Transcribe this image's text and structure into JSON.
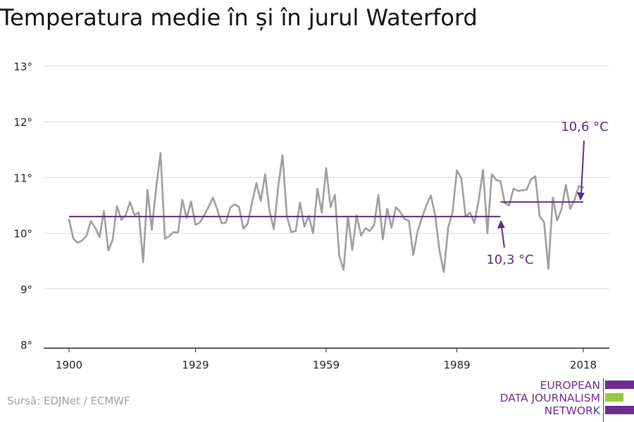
{
  "title": "Temperatura medie în și în jurul Waterford",
  "source": "Sursă: EDJNet / ECMWF",
  "logo": {
    "line1": "EUROPEAN",
    "line2": "DATA JOURNALISM",
    "line3": "NETWORK"
  },
  "colors": {
    "series": "#9e9e9e",
    "accent": "#5b2a86",
    "grid": "#d9d9d9",
    "logo_purple": "#6a2d90",
    "logo_green": "#96c93d"
  },
  "chart_data": {
    "type": "line",
    "title": "Temperatura medie în și în jurul Waterford",
    "xlabel": "",
    "ylabel": "",
    "xlim": [
      1900,
      2018
    ],
    "ylim": [
      8,
      13
    ],
    "x_ticks": [
      1900,
      1929,
      1959,
      1989,
      2018
    ],
    "x_tick_labels": [
      "1900",
      "1929",
      "1959",
      "1989",
      "2018"
    ],
    "y_ticks": [
      8,
      9,
      10,
      11,
      12,
      13
    ],
    "y_tick_labels": [
      "8°",
      "9°",
      "10°",
      "11°",
      "12°",
      "13°"
    ],
    "grid": true,
    "series": [
      {
        "x": [
          1900,
          1901,
          1902,
          1903,
          1904,
          1905,
          1906,
          1907,
          1908,
          1909,
          1910,
          1911,
          1912,
          1913,
          1914,
          1915,
          1916,
          1917,
          1918,
          1919,
          1920,
          1921,
          1922,
          1923,
          1924,
          1925,
          1926,
          1927,
          1928,
          1929,
          1930,
          1931,
          1932,
          1933,
          1934,
          1935,
          1936,
          1937,
          1938,
          1939,
          1940,
          1941,
          1942,
          1943,
          1944,
          1945,
          1946,
          1947,
          1948,
          1949,
          1950,
          1951,
          1952,
          1953,
          1954,
          1955,
          1956,
          1957,
          1958,
          1959,
          1960,
          1961,
          1962,
          1963,
          1964,
          1965,
          1966,
          1967,
          1968,
          1969,
          1970,
          1971,
          1972,
          1973,
          1974,
          1975,
          1976,
          1977,
          1978,
          1979,
          1980,
          1981,
          1982,
          1983,
          1984,
          1985,
          1986,
          1987,
          1988,
          1989,
          1990,
          1991,
          1992,
          1993,
          1994,
          1995,
          1996,
          1997,
          1998,
          1999,
          2000,
          2001,
          2002,
          2003,
          2004,
          2005,
          2006,
          2007,
          2008,
          2009,
          2010,
          2011,
          2012,
          2013,
          2014,
          2015,
          2016,
          2017,
          2018
        ],
        "values": [
          10.24,
          9.9,
          9.83,
          9.87,
          9.95,
          10.22,
          10.1,
          9.93,
          10.4,
          9.69,
          9.88,
          10.49,
          10.24,
          10.33,
          10.56,
          10.33,
          10.37,
          9.48,
          10.78,
          10.06,
          10.82,
          11.44,
          9.9,
          9.95,
          10.02,
          10.01,
          10.6,
          10.27,
          10.57,
          10.15,
          10.19,
          10.32,
          10.47,
          10.64,
          10.43,
          10.18,
          10.19,
          10.46,
          10.52,
          10.47,
          10.08,
          10.17,
          10.55,
          10.9,
          10.58,
          11.06,
          10.4,
          10.07,
          10.83,
          11.4,
          10.3,
          10.02,
          10.04,
          10.55,
          10.12,
          10.31,
          10.0,
          10.8,
          10.37,
          11.17,
          10.47,
          10.69,
          9.6,
          9.34,
          10.3,
          9.7,
          10.32,
          9.96,
          10.09,
          10.04,
          10.15,
          10.69,
          9.89,
          10.44,
          10.1,
          10.47,
          10.38,
          10.26,
          10.22,
          9.61,
          10.04,
          10.28,
          10.5,
          10.68,
          10.33,
          9.7,
          9.3,
          10.1,
          10.37,
          11.13,
          10.99,
          10.3,
          10.37,
          10.18,
          10.59,
          11.14,
          10.0,
          11.06,
          10.96,
          10.93,
          10.54,
          10.5,
          10.8,
          10.76,
          10.77,
          10.78,
          10.97,
          11.02,
          10.3,
          10.2,
          9.36,
          10.64,
          10.23,
          10.43,
          10.87,
          10.44,
          10.6,
          10.85,
          10.82
        ]
      }
    ],
    "reference_lines": [
      {
        "label": "10,3 °C",
        "value": 10.3,
        "x_from": 1900,
        "x_to": 1999
      },
      {
        "label": "10,6 °C",
        "value": 10.56,
        "x_from": 1999,
        "x_to": 2018
      }
    ]
  }
}
